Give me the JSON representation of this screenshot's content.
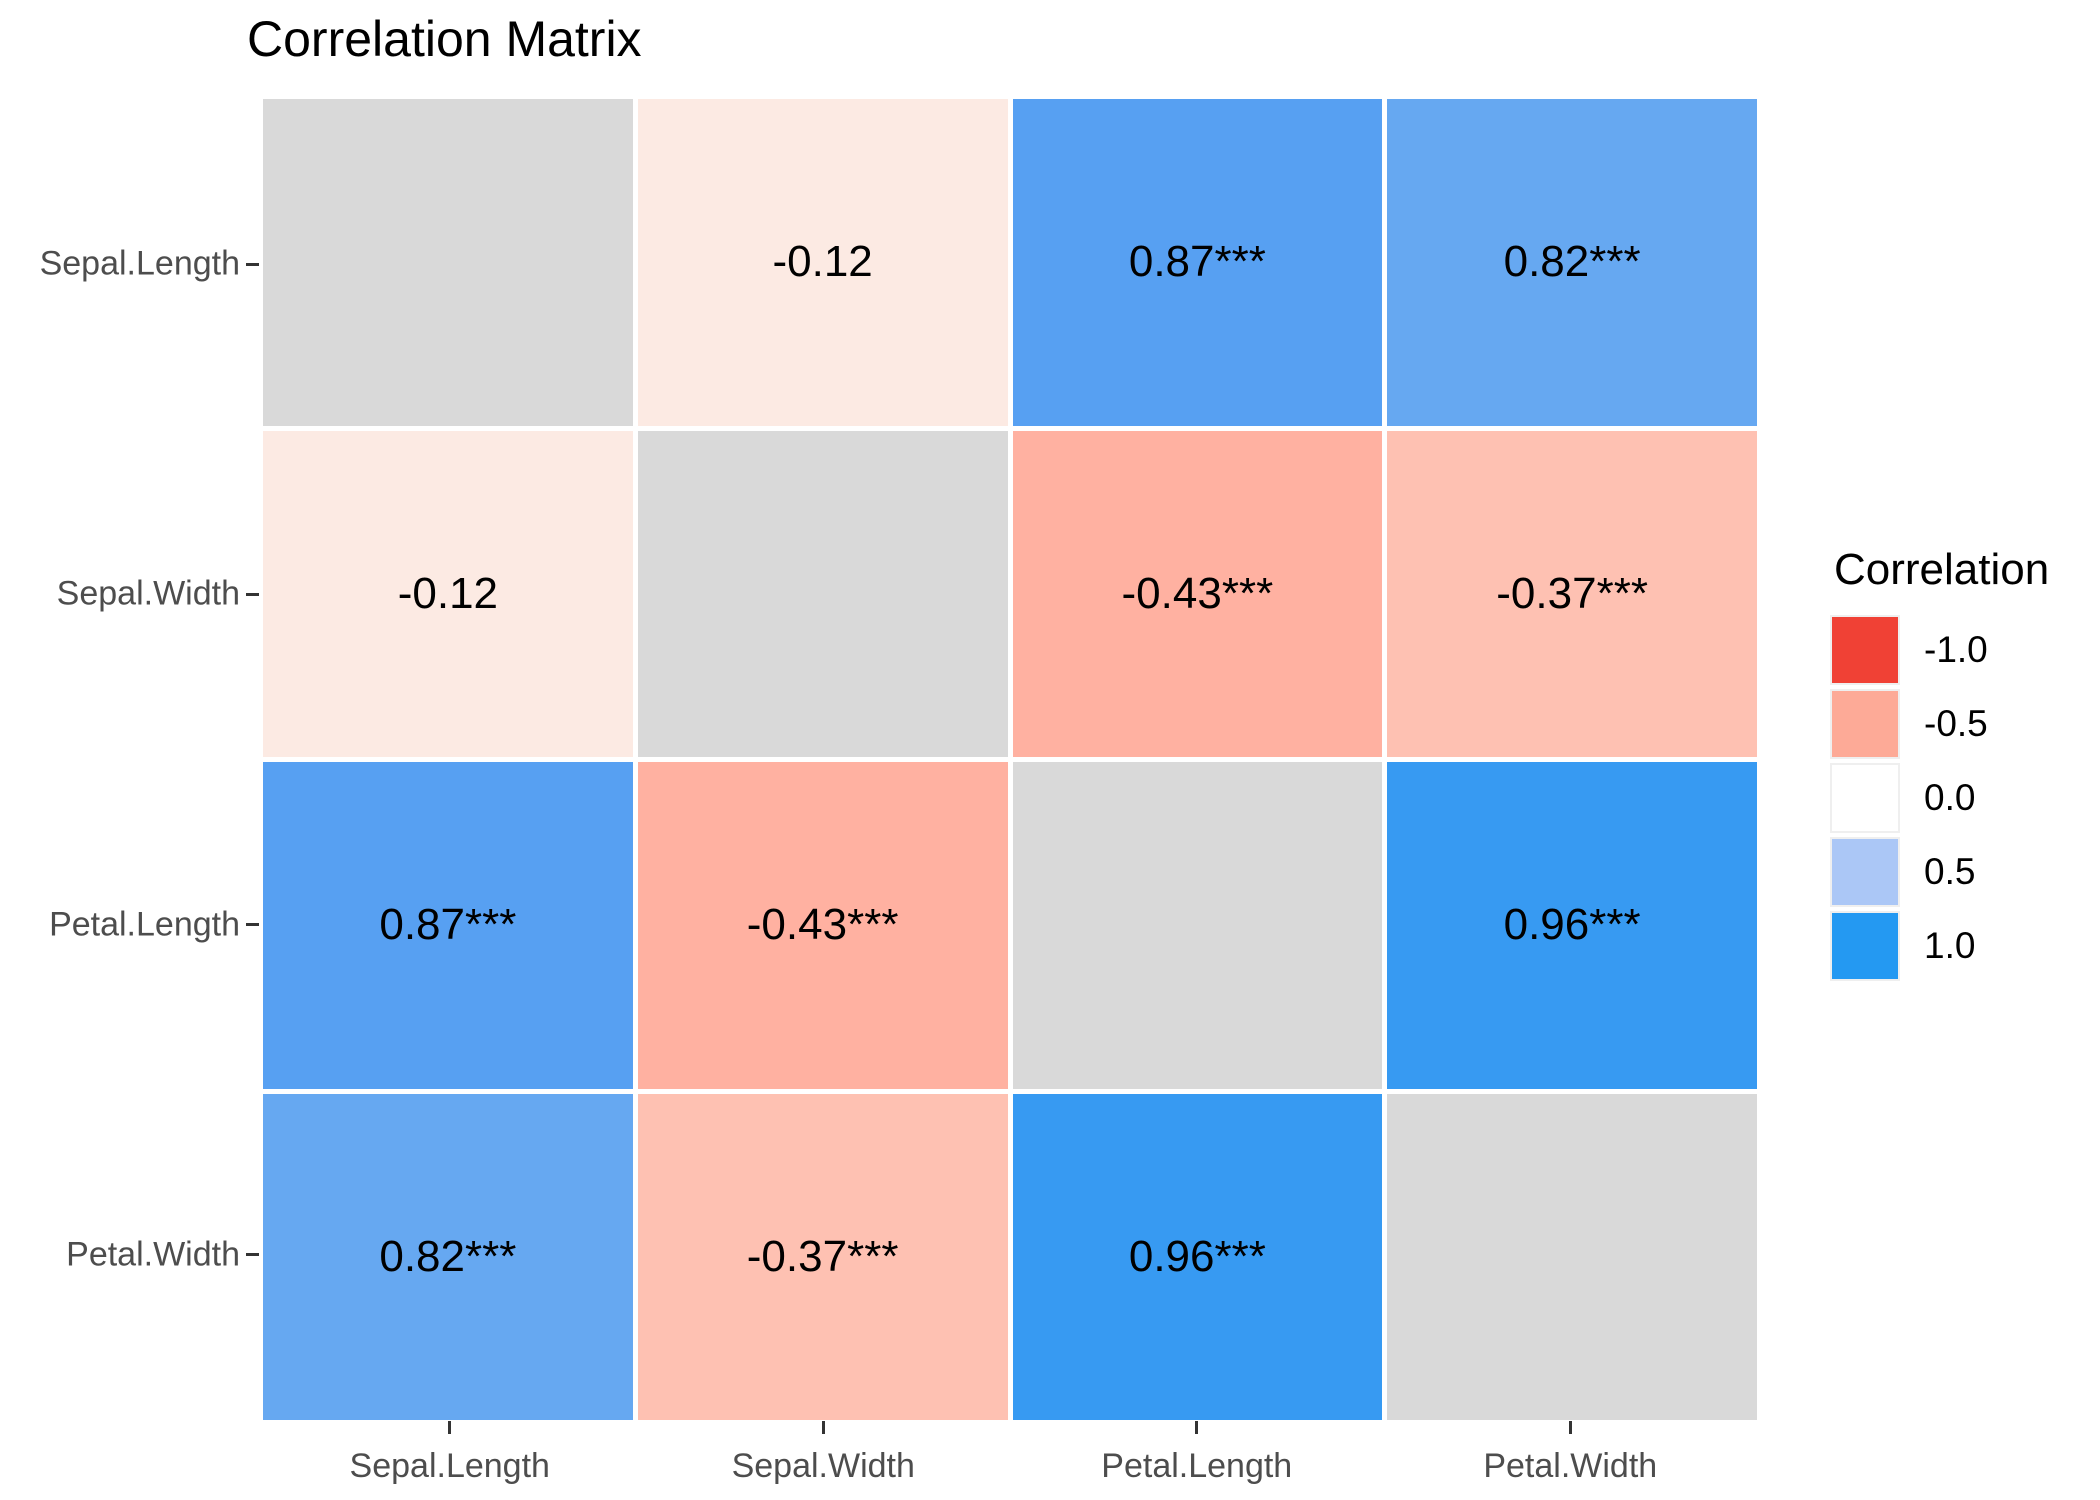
{
  "chart_data": {
    "type": "heatmap",
    "title": "Correlation Matrix",
    "variables": [
      "Sepal.Length",
      "Sepal.Width",
      "Petal.Length",
      "Petal.Width"
    ],
    "x_tick_labels": [
      "Sepal.Length",
      "Sepal.Width",
      "Petal.Length",
      "Petal.Width"
    ],
    "y_tick_labels": [
      "Sepal.Length",
      "Sepal.Width",
      "Petal.Length",
      "Petal.Width"
    ],
    "matrix": [
      [
        null,
        -0.12,
        0.87,
        0.82
      ],
      [
        -0.12,
        null,
        -0.43,
        -0.37
      ],
      [
        0.87,
        -0.43,
        null,
        0.96
      ],
      [
        0.82,
        -0.37,
        0.96,
        null
      ]
    ],
    "cells": [
      [
        {
          "label": "",
          "color": "#D9D9D9"
        },
        {
          "label": "-0.12",
          "color": "#FCEAE3"
        },
        {
          "label": "0.87***",
          "color": "#57A0F2"
        },
        {
          "label": "0.82***",
          "color": "#66A8F1"
        }
      ],
      [
        {
          "label": "-0.12",
          "color": "#FCEAE3"
        },
        {
          "label": "",
          "color": "#D9D9D9"
        },
        {
          "label": "-0.43***",
          "color": "#FFB1A1"
        },
        {
          "label": "-0.37***",
          "color": "#FEC1B2"
        }
      ],
      [
        {
          "label": "0.87***",
          "color": "#57A0F2"
        },
        {
          "label": "-0.43***",
          "color": "#FFB1A1"
        },
        {
          "label": "",
          "color": "#D9D9D9"
        },
        {
          "label": "0.96***",
          "color": "#379AF2"
        }
      ],
      [
        {
          "label": "0.82***",
          "color": "#66A8F1"
        },
        {
          "label": "-0.37***",
          "color": "#FEC1B2"
        },
        {
          "label": "0.96***",
          "color": "#379AF2"
        },
        {
          "label": "",
          "color": "#D9D9D9"
        }
      ]
    ],
    "legend": {
      "title": "Correlation",
      "entries": [
        {
          "label": "-1.0",
          "color": "#F04135"
        },
        {
          "label": "-0.5",
          "color": "#FDAA97"
        },
        {
          "label": "0.0",
          "color": "#FFFFFF"
        },
        {
          "label": "0.5",
          "color": "#ABC7F6"
        },
        {
          "label": "1.0",
          "color": "#2499F2"
        }
      ],
      "position": "right"
    },
    "colors": {
      "na_cell": "#D9D9D9",
      "axis_text": "#4D4D4D",
      "tick": "#333333",
      "cell_text": "#000000",
      "background": "#FFFFFF"
    },
    "layout": {
      "grid_lines": false,
      "value_range": [
        -1,
        1
      ],
      "significance_marker": "***"
    }
  }
}
